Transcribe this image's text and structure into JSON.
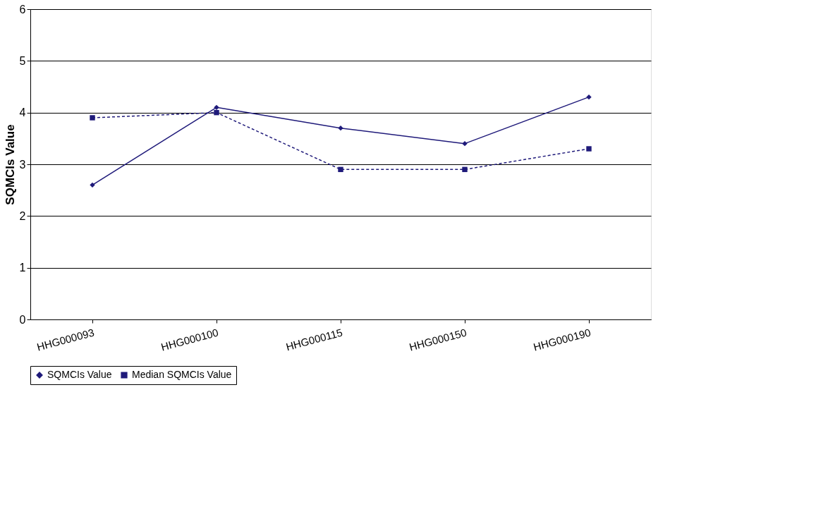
{
  "chart_data": {
    "type": "line",
    "ylabel": "SQMCIs Value",
    "categories": [
      "HHG000093",
      "HHG000100",
      "HHG000115",
      "HHG000150",
      "HHG000190"
    ],
    "series": [
      {
        "name": "SQMCIs Value",
        "color": "#1f1a7a",
        "values": [
          2.6,
          4.1,
          3.7,
          3.4,
          4.3
        ],
        "marker": "diamond",
        "line_style": "solid"
      },
      {
        "name": "Median SQMCIs Value",
        "color": "#1f1a7a",
        "values": [
          3.9,
          4.0,
          2.9,
          2.9,
          3.3
        ],
        "marker": "square",
        "line_style": "dashed"
      }
    ],
    "ylim": [
      0,
      6
    ],
    "yticks": [
      0,
      1,
      2,
      3,
      4,
      5,
      6
    ],
    "grid": "y",
    "legend": "bottom"
  }
}
